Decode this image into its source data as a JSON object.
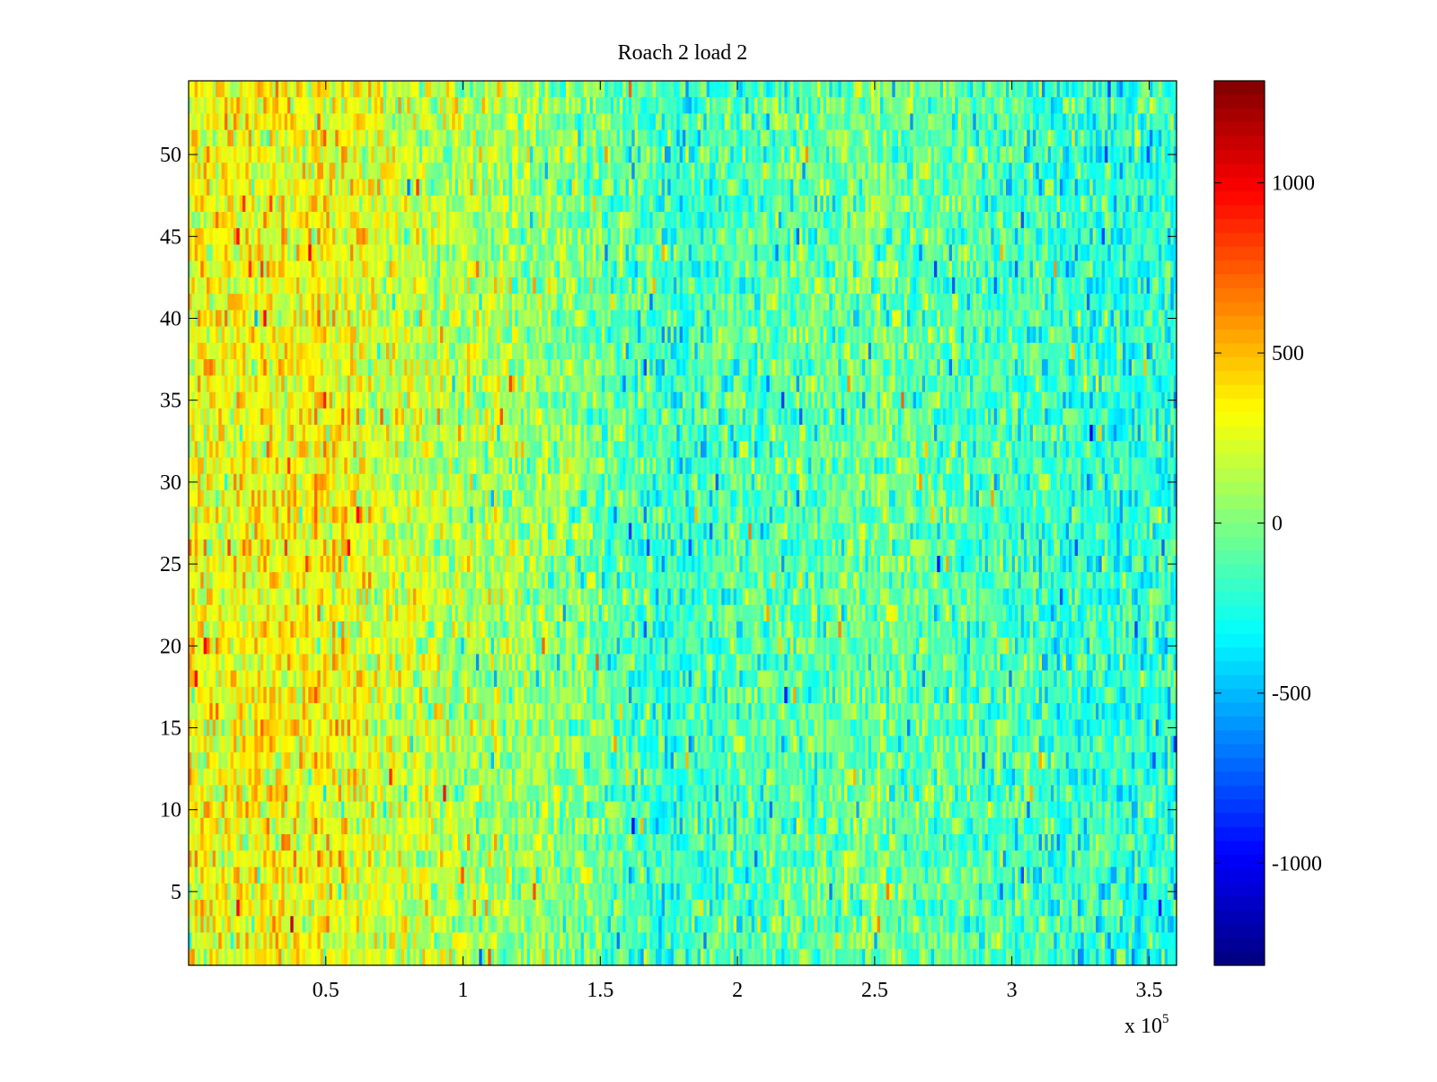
{
  "chart_data": {
    "type": "heatmap",
    "title": "Roach 2 load 2",
    "xlabel": "",
    "ylabel": "",
    "x_exponent_label": "x 10",
    "x_exponent_power": "5",
    "xlim": [
      0,
      3.6
    ],
    "ylim": [
      0.5,
      54.5
    ],
    "x_ticks": [
      0.5,
      1,
      1.5,
      2,
      2.5,
      3,
      3.5
    ],
    "x_tick_labels": [
      "0.5",
      "1",
      "1.5",
      "2",
      "2.5",
      "3",
      "3.5"
    ],
    "y_ticks": [
      5,
      10,
      15,
      20,
      25,
      30,
      35,
      40,
      45,
      50
    ],
    "y_tick_labels": [
      "5",
      "10",
      "15",
      "20",
      "25",
      "30",
      "35",
      "40",
      "45",
      "50"
    ],
    "rows": 54,
    "colormap": "jet",
    "clim": [
      -1300,
      1300
    ],
    "colorbar_ticks": [
      1000,
      500,
      0,
      -500,
      -1000
    ],
    "colorbar_tick_labels": [
      "1000",
      "500",
      "0",
      "-500",
      "-1000"
    ],
    "grid": false,
    "column_profile": [
      {
        "x": 0.0,
        "value": 280
      },
      {
        "x": 0.25,
        "value": 320
      },
      {
        "x": 0.5,
        "value": 330
      },
      {
        "x": 0.75,
        "value": 200
      },
      {
        "x": 1.0,
        "value": 120
      },
      {
        "x": 1.25,
        "value": 80
      },
      {
        "x": 1.5,
        "value": -50
      },
      {
        "x": 1.75,
        "value": -200
      },
      {
        "x": 2.0,
        "value": -120
      },
      {
        "x": 2.25,
        "value": -80
      },
      {
        "x": 2.5,
        "value": -40
      },
      {
        "x": 2.75,
        "value": -90
      },
      {
        "x": 3.0,
        "value": -150
      },
      {
        "x": 3.25,
        "value": -200
      },
      {
        "x": 3.6,
        "value": -220
      }
    ]
  }
}
